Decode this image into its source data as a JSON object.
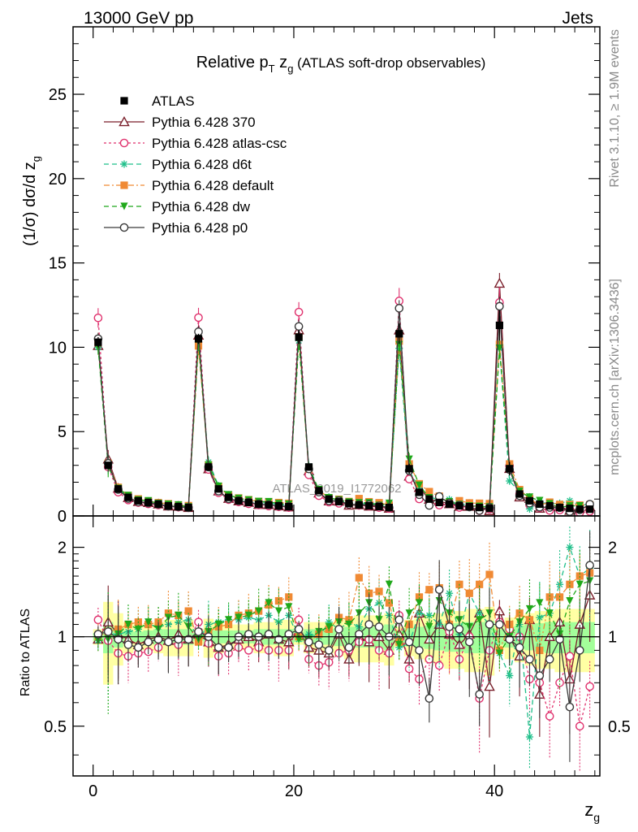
{
  "header": {
    "left": "13000 GeV pp",
    "right": "Jets"
  },
  "side_text": {
    "rivet": "Rivet 3.1.10, ≥ 1.9M events",
    "mcplots": "mcplots.cern.ch [arXiv:1306.3436]"
  },
  "watermark": "ATLAS_2019_I1772062",
  "chart_data": [
    {
      "type": "line",
      "title": {
        "main": "Relative p",
        "sub1": "T",
        "mid": " z",
        "sub2": "g",
        "rest": " (ATLAS soft-drop observables)"
      },
      "ylabel": {
        "main": "(1/σ) dσ/d z",
        "sub": "g"
      },
      "xlim": [
        -2,
        50.5
      ],
      "ylim": [
        0,
        29
      ],
      "y_ticks": [
        0,
        5,
        10,
        15,
        20,
        25
      ],
      "grid": false,
      "legend_position": "top-left",
      "x": [
        0.5,
        1.5,
        2.5,
        3.5,
        4.5,
        5.5,
        6.5,
        7.5,
        8.5,
        9.5,
        10.5,
        11.5,
        12.5,
        13.5,
        14.5,
        15.5,
        16.5,
        17.5,
        18.5,
        19.5,
        20.5,
        21.5,
        22.5,
        23.5,
        24.5,
        25.5,
        26.5,
        27.5,
        28.5,
        29.5,
        30.5,
        31.5,
        32.5,
        33.5,
        34.5,
        35.5,
        36.5,
        37.5,
        38.5,
        39.5,
        40.5,
        41.5,
        42.5,
        43.5,
        44.5,
        45.5,
        46.5,
        47.5,
        48.5,
        49.5
      ],
      "atlas": {
        "name": "ATLAS",
        "values": [
          10.3,
          3.0,
          1.6,
          1.1,
          0.9,
          0.8,
          0.7,
          0.6,
          0.55,
          0.5,
          10.5,
          2.9,
          1.6,
          1.1,
          0.9,
          0.8,
          0.7,
          0.65,
          0.6,
          0.55,
          10.6,
          2.9,
          1.5,
          1.0,
          0.85,
          0.75,
          0.65,
          0.6,
          0.55,
          0.5,
          10.8,
          2.8,
          1.4,
          1.0,
          0.8,
          0.7,
          0.6,
          0.55,
          0.5,
          0.45,
          11.3,
          2.8,
          1.3,
          0.9,
          0.7,
          0.6,
          0.5,
          0.45,
          0.4,
          0.4
        ],
        "errors": [
          0.3,
          0.2,
          0.1,
          0.1,
          0.08,
          0.07,
          0.06,
          0.06,
          0.05,
          0.05,
          0.3,
          0.2,
          0.1,
          0.1,
          0.08,
          0.07,
          0.06,
          0.06,
          0.05,
          0.05,
          0.4,
          0.2,
          0.1,
          0.1,
          0.08,
          0.07,
          0.07,
          0.06,
          0.06,
          0.06,
          0.6,
          0.3,
          0.15,
          0.12,
          0.1,
          0.09,
          0.09,
          0.08,
          0.08,
          0.08,
          0.9,
          0.4,
          0.2,
          0.15,
          0.12,
          0.11,
          0.1,
          0.1,
          0.1,
          0.1
        ],
        "band_rel": [
          0.06,
          0.31,
          0.2,
          0.12,
          0.1,
          0.1,
          0.12,
          0.14,
          0.14,
          0.14,
          0.06,
          0.15,
          0.12,
          0.1,
          0.1,
          0.1,
          0.12,
          0.12,
          0.14,
          0.14,
          0.06,
          0.12,
          0.12,
          0.12,
          0.14,
          0.16,
          0.18,
          0.18,
          0.18,
          0.2,
          0.08,
          0.14,
          0.16,
          0.18,
          0.2,
          0.22,
          0.22,
          0.24,
          0.24,
          0.26,
          0.1,
          0.16,
          0.18,
          0.2,
          0.22,
          0.22,
          0.24,
          0.24,
          0.24,
          0.24
        ],
        "band_stat_rel": [
          0.03,
          0.12,
          0.08,
          0.05,
          0.04,
          0.05,
          0.06,
          0.06,
          0.06,
          0.06,
          0.03,
          0.06,
          0.05,
          0.05,
          0.05,
          0.05,
          0.06,
          0.06,
          0.06,
          0.06,
          0.04,
          0.06,
          0.06,
          0.06,
          0.07,
          0.08,
          0.08,
          0.08,
          0.09,
          0.1,
          0.05,
          0.07,
          0.08,
          0.09,
          0.1,
          0.11,
          0.11,
          0.12,
          0.12,
          0.13,
          0.06,
          0.08,
          0.09,
          0.1,
          0.11,
          0.12,
          0.12,
          0.12,
          0.12,
          0.12
        ]
      },
      "series": [
        {
          "name": "Pythia 6.428 370",
          "color": "#7a1f2b",
          "dash": "solid",
          "marker": "triangle-open",
          "ratio": [
            0.98,
            1.12,
            1.02,
            0.98,
            0.94,
            0.98,
            1.0,
            0.97,
            1.02,
            0.98,
            1.02,
            0.96,
            0.92,
            0.94,
            0.98,
            1.0,
            0.96,
            1.02,
            0.98,
            0.96,
            1.04,
            0.92,
            0.9,
            0.88,
            1.02,
            0.84,
            1.0,
            0.96,
            1.0,
            0.9,
            1.02,
            0.84,
            1.2,
            0.98,
            1.1,
            1.02,
            0.94,
            1.02,
            1.2,
            0.68,
            1.22,
            1.0,
            0.86,
            1.14,
            0.64,
            1.0,
            1.12,
            0.72,
            1.1,
            1.38
          ]
        },
        {
          "name": "Pythia 6.428 atlas-csc",
          "color": "#e0326e",
          "dash": "dotted",
          "marker": "circle-open",
          "ratio": [
            1.14,
            0.97,
            0.88,
            0.86,
            0.88,
            0.89,
            0.92,
            0.96,
            0.94,
            0.98,
            1.12,
            0.95,
            0.86,
            0.88,
            0.92,
            0.9,
            0.92,
            0.9,
            0.9,
            0.9,
            1.14,
            0.84,
            0.8,
            0.82,
            0.88,
            0.9,
            0.96,
            0.98,
            0.9,
            0.88,
            1.18,
            0.78,
            0.72,
            0.84,
            0.8,
            1.04,
            0.84,
            1.0,
            0.62,
            0.9,
            1.12,
            1.06,
            1.0,
            0.72,
            0.7,
            0.54,
            0.7,
            0.86,
            0.5,
            0.68
          ]
        },
        {
          "name": "Pythia 6.428 d6t",
          "color": "#1fbf8a",
          "dash": "dashed",
          "marker": "star",
          "ratio": [
            0.97,
            1.02,
            1.02,
            1.04,
            1.06,
            1.1,
            1.08,
            1.1,
            1.12,
            1.14,
            0.98,
            1.1,
            1.12,
            1.14,
            1.14,
            1.16,
            1.14,
            1.18,
            1.12,
            1.18,
            0.98,
            1.02,
            1.0,
            1.12,
            1.06,
            1.12,
            1.08,
            1.24,
            1.3,
            1.18,
            0.92,
            0.95,
            1.2,
            1.18,
            1.1,
            1.4,
            1.02,
            1.4,
            1.2,
            1.1,
            0.88,
            0.74,
            1.1,
            0.46,
            1.16,
            1.2,
            1.5,
            2.0,
            1.6,
            1.7
          ]
        },
        {
          "name": "Pythia 6.428 default",
          "color": "#f08a34",
          "dash": "dashdot",
          "marker": "square",
          "ratio": [
            1.0,
            1.04,
            1.06,
            1.1,
            1.12,
            1.1,
            1.12,
            1.2,
            1.18,
            1.22,
            0.96,
            1.04,
            1.08,
            1.1,
            1.18,
            1.2,
            1.22,
            1.28,
            1.32,
            1.36,
            1.0,
            0.96,
            1.02,
            1.06,
            1.16,
            1.14,
            1.58,
            1.4,
            1.42,
            1.3,
            0.96,
            1.1,
            1.36,
            1.44,
            1.46,
            1.1,
            1.5,
            1.4,
            1.5,
            1.62,
            0.9,
            1.1,
            1.2,
            1.14,
            0.9,
            1.36,
            1.36,
            1.5,
            1.6,
            1.64
          ]
        },
        {
          "name": "Pythia 6.428 dw",
          "color": "#1fa81a",
          "dash": "dashed",
          "marker": "triangle-down",
          "ratio": [
            0.97,
            0.98,
            1.02,
            1.1,
            1.06,
            1.12,
            1.06,
            1.16,
            1.18,
            1.08,
            0.98,
            1.04,
            1.1,
            1.14,
            1.16,
            1.18,
            1.22,
            1.3,
            1.22,
            1.26,
            0.98,
            0.98,
            1.04,
            1.08,
            1.12,
            1.1,
            1.2,
            1.3,
            1.14,
            1.5,
            0.94,
            1.2,
            1.3,
            1.08,
            1.32,
            1.2,
            1.14,
            1.08,
            1.14,
            1.2,
            0.88,
            1.0,
            1.12,
            1.24,
            1.3,
            1.2,
            1.02,
            1.32,
            1.5,
            1.54
          ]
        },
        {
          "name": "Pythia 6.428 p0",
          "color": "#3a3a3a",
          "dash": "solid",
          "marker": "circle-open",
          "ratio": [
            1.02,
            1.04,
            0.98,
            0.94,
            0.92,
            0.96,
            0.98,
            0.96,
            0.98,
            0.98,
            1.04,
            1.0,
            0.92,
            0.92,
            1.0,
            1.02,
            1.0,
            1.02,
            0.98,
            1.02,
            1.06,
            0.96,
            0.94,
            0.9,
            1.06,
            0.92,
            1.02,
            1.1,
            1.08,
            1.0,
            1.14,
            0.96,
            0.9,
            0.62,
            1.44,
            1.08,
            1.06,
            0.96,
            0.64,
            1.1,
            1.1,
            0.98,
            0.92,
            0.84,
            0.74,
            0.84,
            0.98,
            0.58,
            0.9,
            1.74
          ]
        }
      ]
    },
    {
      "type": "line",
      "ylabel": "Ratio to ATLAS",
      "xlabel": {
        "main": "z",
        "sub": "g"
      },
      "xlim": [
        -2,
        50.5
      ],
      "ylim": [
        0.34,
        2.55
      ],
      "y_ticks": [
        0.5,
        1,
        2
      ],
      "x_ticks": [
        0,
        20,
        40
      ],
      "reference_line": 1
    }
  ]
}
